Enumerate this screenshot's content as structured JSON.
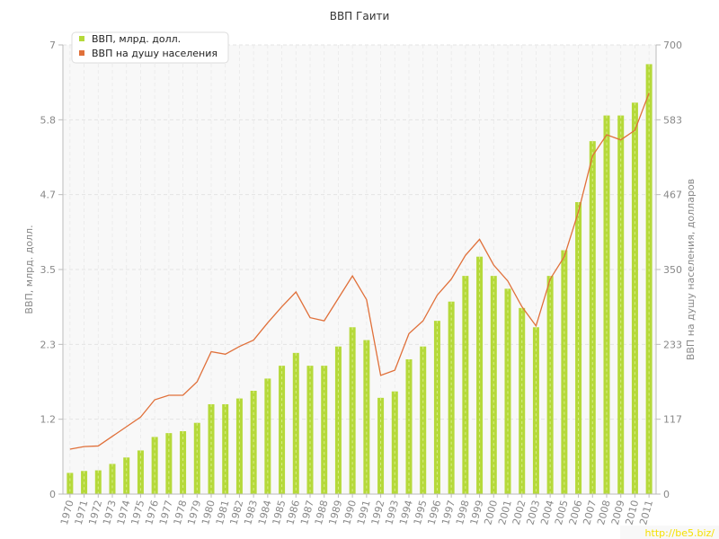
{
  "chart_data": {
    "type": "bar+line",
    "title": "ВВП Гаити",
    "categories": [
      "1970",
      "1971",
      "1972",
      "1973",
      "1974",
      "1975",
      "1976",
      "1977",
      "1978",
      "1979",
      "1980",
      "1981",
      "1982",
      "1983",
      "1984",
      "1985",
      "1986",
      "1987",
      "1988",
      "1989",
      "1990",
      "1991",
      "1992",
      "1993",
      "1994",
      "1995",
      "1996",
      "1997",
      "1998",
      "1999",
      "2000",
      "2001",
      "2002",
      "2003",
      "2004",
      "2005",
      "2006",
      "2007",
      "2008",
      "2009",
      "2010",
      "2011"
    ],
    "series": [
      {
        "name": "ВВП, млрд. долл.",
        "type": "bar",
        "axis": "left",
        "color": "#b5d93a",
        "values": [
          0.33,
          0.36,
          0.37,
          0.47,
          0.57,
          0.68,
          0.89,
          0.95,
          0.98,
          1.11,
          1.4,
          1.4,
          1.49,
          1.61,
          1.8,
          2.0,
          2.2,
          2.0,
          2.0,
          2.3,
          2.6,
          2.4,
          1.5,
          1.6,
          2.1,
          2.3,
          2.7,
          3.0,
          3.4,
          3.7,
          3.4,
          3.2,
          2.9,
          2.6,
          3.4,
          3.8,
          4.55,
          5.5,
          5.9,
          5.9,
          6.1,
          6.7
        ]
      },
      {
        "name": "ВВП на душу населения",
        "type": "line",
        "axis": "right",
        "color": "#e0703a",
        "values": [
          70,
          74,
          75,
          90,
          105,
          120,
          147,
          154,
          154,
          175,
          222,
          218,
          230,
          240,
          267,
          292,
          315,
          275,
          270,
          305,
          340,
          303,
          185,
          193,
          250,
          270,
          310,
          335,
          372,
          397,
          357,
          332,
          292,
          262,
          335,
          370,
          440,
          527,
          560,
          552,
          567,
          625
        ]
      }
    ],
    "left_axis": {
      "label": "ВВП, млрд. долл.",
      "ticks": [
        "0",
        "1.2",
        "2.3",
        "3.5",
        "4.7",
        "5.8",
        "7"
      ],
      "ylim": [
        0,
        7
      ]
    },
    "right_axis": {
      "label": "ВВП на душу населения, долларов",
      "ticks": [
        "0",
        "117",
        "233",
        "350",
        "467",
        "583",
        "700"
      ],
      "ylim": [
        0,
        700
      ]
    },
    "legend_position": "top-left",
    "grid": true
  },
  "watermark": "http://be5.biz/"
}
